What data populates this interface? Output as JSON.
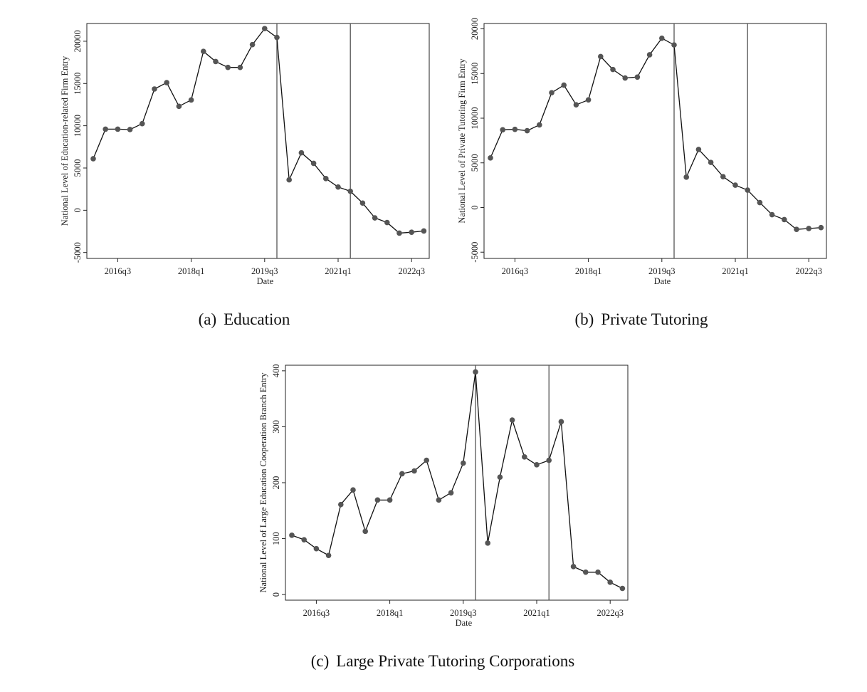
{
  "chart_data": [
    {
      "type": "line",
      "panel": "a",
      "caption_tag": "(a)",
      "caption_text": "Education",
      "xlabel": "Date",
      "ylabel": "National Level of Education-related Firm Entry",
      "x": [
        "2016q1",
        "2016q2",
        "2016q3",
        "2016q4",
        "2017q1",
        "2017q2",
        "2017q3",
        "2017q4",
        "2018q1",
        "2018q2",
        "2018q3",
        "2018q4",
        "2019q1",
        "2019q2",
        "2019q3",
        "2019q4",
        "2020q1",
        "2020q2",
        "2020q3",
        "2020q4",
        "2021q1",
        "2021q2",
        "2021q3",
        "2021q4",
        "2022q1",
        "2022q2",
        "2022q3",
        "2022q4"
      ],
      "series": [
        {
          "values": [
            6100,
            9600,
            9600,
            9550,
            10250,
            14350,
            15100,
            12300,
            13050,
            18800,
            17600,
            16900,
            16900,
            19600,
            21500,
            20450,
            3600,
            6800,
            5550,
            3750,
            2750,
            2250,
            850,
            -900,
            -1450,
            -2700,
            -2600,
            -2450
          ]
        }
      ],
      "x_ticks": [
        "2016q3",
        "2018q1",
        "2019q3",
        "2021q1",
        "2022q3"
      ],
      "y_ticks": [
        -5000,
        0,
        5000,
        10000,
        15000,
        20000
      ],
      "ylim": [
        -5700,
        22100
      ],
      "vlines": [
        "2019q4",
        "2021q2"
      ],
      "marker_color": "#555555",
      "line_color": "#111111"
    },
    {
      "type": "line",
      "panel": "b",
      "caption_tag": "(b)",
      "caption_text": "Private Tutoring",
      "xlabel": "Date",
      "ylabel": "National Level of Private Tutoring Firm Entry",
      "x": [
        "2016q1",
        "2016q2",
        "2016q3",
        "2016q4",
        "2017q1",
        "2017q2",
        "2017q3",
        "2017q4",
        "2018q1",
        "2018q2",
        "2018q3",
        "2018q4",
        "2019q1",
        "2019q2",
        "2019q3",
        "2019q4",
        "2020q1",
        "2020q2",
        "2020q3",
        "2020q4",
        "2021q1",
        "2021q2",
        "2021q3",
        "2021q4",
        "2022q1",
        "2022q2",
        "2022q3",
        "2022q4"
      ],
      "series": [
        {
          "values": [
            5550,
            8700,
            8750,
            8600,
            9250,
            12850,
            13700,
            11500,
            12050,
            16900,
            15450,
            14500,
            14600,
            17100,
            18950,
            18200,
            3400,
            6500,
            5050,
            3450,
            2500,
            1950,
            550,
            -800,
            -1350,
            -2450,
            -2350,
            -2250
          ]
        }
      ],
      "x_ticks": [
        "2016q3",
        "2018q1",
        "2019q3",
        "2021q1",
        "2022q3"
      ],
      "y_ticks": [
        -5000,
        0,
        5000,
        10000,
        15000,
        20000
      ],
      "ylim": [
        -5700,
        20600
      ],
      "vlines": [
        "2019q4",
        "2021q2"
      ],
      "marker_color": "#555555",
      "line_color": "#111111"
    },
    {
      "type": "line",
      "panel": "c",
      "caption_tag": "(c)",
      "caption_text": "Large Private Tutoring Corporations",
      "xlabel": "Date",
      "ylabel": "National Level of Large Education Cooperation Branch Entry",
      "x": [
        "2016q1",
        "2016q2",
        "2016q3",
        "2016q4",
        "2017q1",
        "2017q2",
        "2017q3",
        "2017q4",
        "2018q1",
        "2018q2",
        "2018q3",
        "2018q4",
        "2019q1",
        "2019q2",
        "2019q3",
        "2019q4",
        "2020q1",
        "2020q2",
        "2020q3",
        "2020q4",
        "2021q1",
        "2021q2",
        "2021q3",
        "2021q4",
        "2022q1",
        "2022q2",
        "2022q3",
        "2022q4"
      ],
      "series": [
        {
          "values": [
            106,
            98,
            82,
            70,
            161,
            187,
            113,
            169,
            169,
            216,
            221,
            240,
            169,
            182,
            235,
            398,
            92,
            210,
            312,
            246,
            232,
            240,
            309,
            50,
            40,
            40,
            22,
            11
          ]
        }
      ],
      "x_ticks": [
        "2016q3",
        "2018q1",
        "2019q3",
        "2021q1",
        "2022q3"
      ],
      "y_ticks": [
        0,
        100,
        200,
        300,
        400
      ],
      "ylim": [
        -10,
        410
      ],
      "vlines": [
        "2019q4",
        "2021q2"
      ],
      "marker_color": "#555555",
      "line_color": "#111111"
    }
  ]
}
